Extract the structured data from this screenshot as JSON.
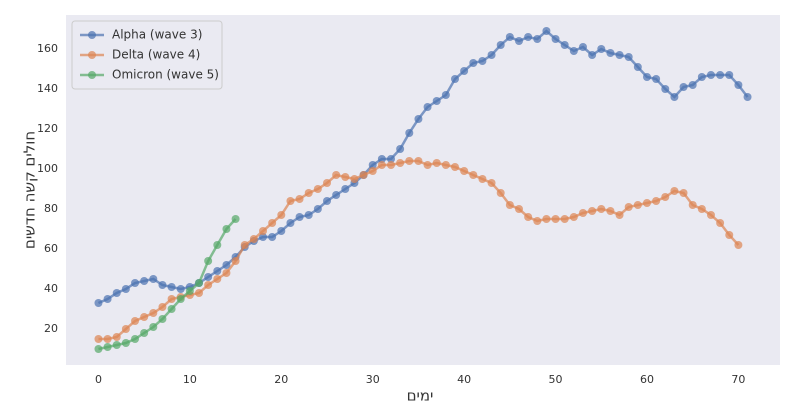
{
  "chart_data": {
    "type": "line",
    "x_label": "ימים",
    "y_label": "חולים קשה חדשים",
    "x": [
      0,
      1,
      2,
      3,
      4,
      5,
      6,
      7,
      8,
      9,
      10,
      11,
      12,
      13,
      14,
      15,
      16,
      17,
      18,
      19,
      20,
      21,
      22,
      23,
      24,
      25,
      26,
      27,
      28,
      29,
      30,
      31,
      32,
      33,
      34,
      35,
      36,
      37,
      38,
      39,
      40,
      41,
      42,
      43,
      44,
      45,
      46,
      47,
      48,
      49,
      50,
      51,
      52,
      53,
      54,
      55,
      56,
      57,
      58,
      59,
      60,
      61,
      62,
      63,
      64,
      65,
      66,
      67,
      68,
      69,
      70,
      71
    ],
    "xlim": [
      -3.55,
      74.55
    ],
    "xticks": [
      0,
      10,
      20,
      30,
      40,
      50,
      60,
      70
    ],
    "ylim": [
      2,
      177
    ],
    "yticks": [
      20,
      40,
      60,
      80,
      100,
      120,
      140,
      160
    ],
    "grid": false,
    "legend": "upper left",
    "series": [
      {
        "name": "Alpha (wave 3)",
        "color": "#4c72b0",
        "values": [
          33,
          35,
          38,
          40,
          43,
          44,
          45,
          42,
          41,
          40,
          41,
          43,
          46,
          49,
          52,
          56,
          61,
          64,
          66,
          66,
          69,
          73,
          76,
          77,
          80,
          84,
          87,
          90,
          93,
          97,
          102,
          105,
          105,
          110,
          118,
          125,
          131,
          134,
          137,
          145,
          149,
          153,
          154,
          157,
          162,
          166,
          164,
          166,
          165,
          169,
          165,
          162,
          159,
          161,
          157,
          160,
          158,
          157,
          156,
          151,
          146,
          145,
          140,
          136,
          141,
          142,
          146,
          147,
          147,
          147,
          142,
          136
        ]
      },
      {
        "name": "Delta (wave 4)",
        "color": "#dd8452",
        "values": [
          15,
          15,
          16,
          20,
          24,
          26,
          28,
          31,
          35,
          36,
          37,
          38,
          42,
          45,
          48,
          54,
          62,
          65,
          69,
          73,
          77,
          84,
          85,
          88,
          90,
          93,
          97,
          96,
          95,
          97,
          99,
          102,
          102,
          103,
          104,
          104,
          102,
          103,
          102,
          101,
          99,
          97,
          95,
          93,
          88,
          82,
          80,
          76,
          74,
          75,
          75,
          75,
          76,
          78,
          79,
          80,
          79,
          77,
          81,
          82,
          83,
          84,
          86,
          89,
          88,
          82,
          80,
          77,
          73,
          67,
          62,
          null
        ]
      },
      {
        "name": "Omicron (wave 5)",
        "color": "#55a868",
        "values": [
          10,
          11,
          12,
          13,
          15,
          18,
          21,
          25,
          30,
          35,
          39,
          43,
          54,
          62,
          70,
          75,
          null,
          null,
          null,
          null,
          null,
          null,
          null,
          null,
          null,
          null,
          null,
          null,
          null,
          null,
          null,
          null,
          null,
          null,
          null,
          null,
          null,
          null,
          null,
          null,
          null,
          null,
          null,
          null,
          null,
          null,
          null,
          null,
          null,
          null,
          null,
          null,
          null,
          null,
          null,
          null,
          null,
          null,
          null,
          null,
          null,
          null,
          null,
          null,
          null,
          null,
          null,
          null,
          null,
          null,
          null,
          null
        ]
      }
    ]
  }
}
